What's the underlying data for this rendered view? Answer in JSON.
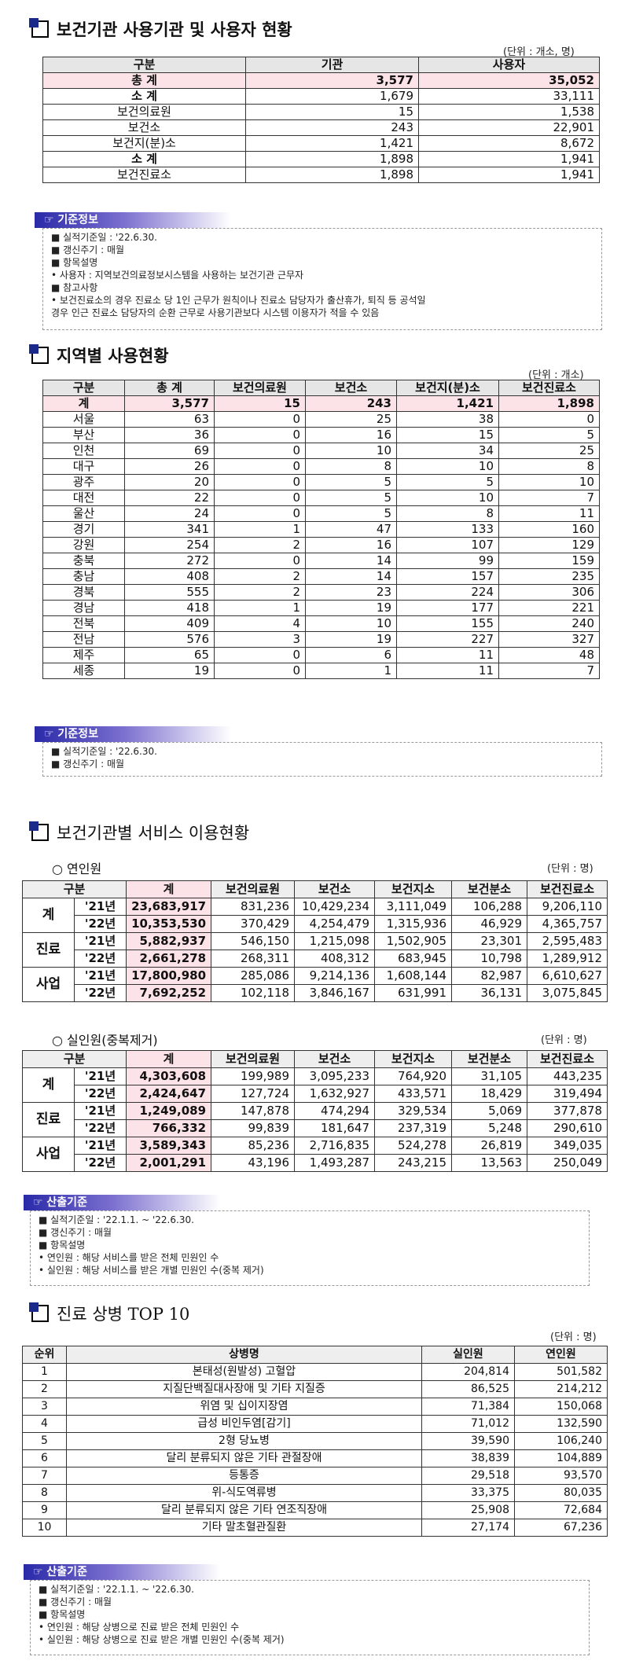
{
  "s1": {
    "title": "보건기관 사용기관 및 사용자 현황",
    "unit": "(단위 : 개소, 명)",
    "headers": [
      "구분",
      "기관",
      "사용자"
    ],
    "rows": [
      [
        "총 계",
        "3,577",
        "35,052"
      ],
      [
        "소 계",
        "1,679",
        "33,111"
      ],
      [
        "보건의료원",
        "15",
        "1,538"
      ],
      [
        "보건소",
        "243",
        "22,901"
      ],
      [
        "보건지(분)소",
        "1,421",
        "8,672"
      ],
      [
        "소 계",
        "1,898",
        "1,941"
      ],
      [
        "보건진료소",
        "1,898",
        "1,941"
      ]
    ],
    "note_head": "☞ 기준정보",
    "notes": [
      "■  실적기준일 : '22.6.30.",
      "■  갱신주기 : 매월",
      "■  항목설명",
      " • 사용자 : 지역보건의료정보시스템을 사용하는 보건기관 근무자",
      "■  참고사항",
      " • 보건진료소의 경우 진료소 당 1인 근무가 원칙이나 진료소 담당자가 출산휴가, 퇴직 등 공석일",
      "   경우 인근 진료소 담당자의 순환 근무로 사용기관보다 시스템 이용자가 적을 수 있음"
    ]
  },
  "s2": {
    "title": "지역별 사용현황",
    "unit": "(단위 : 개소)",
    "headers": [
      "구분",
      "총 계",
      "보건의료원",
      "보건소",
      "보건지(분)소",
      "보건진료소"
    ],
    "total": [
      "계",
      "3,577",
      "15",
      "243",
      "1,421",
      "1,898"
    ],
    "rows": [
      [
        "서울",
        "63",
        "0",
        "25",
        "38",
        "0"
      ],
      [
        "부산",
        "36",
        "0",
        "16",
        "15",
        "5"
      ],
      [
        "인천",
        "69",
        "0",
        "10",
        "34",
        "25"
      ],
      [
        "대구",
        "26",
        "0",
        "8",
        "10",
        "8"
      ],
      [
        "광주",
        "20",
        "0",
        "5",
        "5",
        "10"
      ],
      [
        "대전",
        "22",
        "0",
        "5",
        "10",
        "7"
      ],
      [
        "울산",
        "24",
        "0",
        "5",
        "8",
        "11"
      ],
      [
        "경기",
        "341",
        "1",
        "47",
        "133",
        "160"
      ],
      [
        "강원",
        "254",
        "2",
        "16",
        "107",
        "129"
      ],
      [
        "충북",
        "272",
        "0",
        "14",
        "99",
        "159"
      ],
      [
        "충남",
        "408",
        "2",
        "14",
        "157",
        "235"
      ],
      [
        "경북",
        "555",
        "2",
        "23",
        "224",
        "306"
      ],
      [
        "경남",
        "418",
        "1",
        "19",
        "177",
        "221"
      ],
      [
        "전북",
        "409",
        "4",
        "10",
        "155",
        "240"
      ],
      [
        "전남",
        "576",
        "3",
        "19",
        "227",
        "327"
      ],
      [
        "제주",
        "65",
        "0",
        "6",
        "11",
        "48"
      ],
      [
        "세종",
        "19",
        "0",
        "1",
        "11",
        "7"
      ]
    ],
    "note_head": "☞ 기준정보",
    "notes": [
      "■  실적기준일 : '22.6.30.",
      "■  갱신주기 : 매월"
    ]
  },
  "s3": {
    "title": "보건기관별 서비스 이용현황",
    "sub1": "○  연인원",
    "sub2": "○  실인원(중복제거)",
    "unit": "(단위 : 명)",
    "headers": [
      "구분",
      "계",
      "보건의료원",
      "보건소",
      "보건지소",
      "보건분소",
      "보건진료소"
    ],
    "t1": [
      {
        "group": "계",
        "rows": [
          [
            "'21년",
            "23,683,917",
            "831,236",
            "10,429,234",
            "3,111,049",
            "106,288",
            "9,206,110"
          ],
          [
            "'22년",
            "10,353,530",
            "370,429",
            "4,254,479",
            "1,315,936",
            "46,929",
            "4,365,757"
          ]
        ]
      },
      {
        "group": "진료",
        "rows": [
          [
            "'21년",
            "5,882,937",
            "546,150",
            "1,215,098",
            "1,502,905",
            "23,301",
            "2,595,483"
          ],
          [
            "'22년",
            "2,661,278",
            "268,311",
            "408,312",
            "683,945",
            "10,798",
            "1,289,912"
          ]
        ]
      },
      {
        "group": "사업",
        "rows": [
          [
            "'21년",
            "17,800,980",
            "285,086",
            "9,214,136",
            "1,608,144",
            "82,987",
            "6,610,627"
          ],
          [
            "'22년",
            "7,692,252",
            "102,118",
            "3,846,167",
            "631,991",
            "36,131",
            "3,075,845"
          ]
        ]
      }
    ],
    "t2": [
      {
        "group": "계",
        "rows": [
          [
            "'21년",
            "4,303,608",
            "199,989",
            "3,095,233",
            "764,920",
            "31,105",
            "443,235"
          ],
          [
            "'22년",
            "2,424,647",
            "127,724",
            "1,632,927",
            "433,571",
            "18,429",
            "319,494"
          ]
        ]
      },
      {
        "group": "진료",
        "rows": [
          [
            "'21년",
            "1,249,089",
            "147,878",
            "474,294",
            "329,534",
            "5,069",
            "377,878"
          ],
          [
            "'22년",
            "766,332",
            "99,839",
            "181,647",
            "237,319",
            "5,248",
            "290,610"
          ]
        ]
      },
      {
        "group": "사업",
        "rows": [
          [
            "'21년",
            "3,589,343",
            "85,236",
            "2,716,835",
            "524,278",
            "26,819",
            "349,035"
          ],
          [
            "'22년",
            "2,001,291",
            "43,196",
            "1,493,287",
            "243,215",
            "13,563",
            "250,049"
          ]
        ]
      }
    ],
    "note_head": "☞ 산출기준",
    "notes": [
      "■  실적기준일 : '22.1.1. ~ '22.6.30.",
      "■  갱신주기 : 매월",
      "■  항목설명",
      " •  연인원 : 해당 서비스를 받은 전체 민원인 수",
      " •  실인원 : 해당 서비스를 받은 개별 민원인 수(중복 제거)"
    ]
  },
  "s4": {
    "title": "진료 상병 TOP 10",
    "unit": "(단위 : 명)",
    "headers": [
      "순위",
      "상병명",
      "실인원",
      "연인원"
    ],
    "rows": [
      [
        "1",
        "본태성(원발성) 고혈압",
        "204,814",
        "501,582"
      ],
      [
        "2",
        "지질단백질대사장애 및 기타 지질증",
        "86,525",
        "214,212"
      ],
      [
        "3",
        "위염 및 십이지장염",
        "71,384",
        "150,068"
      ],
      [
        "4",
        "급성 비인두염[감기]",
        "71,012",
        "132,590"
      ],
      [
        "5",
        "2형 당뇨병",
        "39,590",
        "106,240"
      ],
      [
        "6",
        "달리 분류되지 않은 기타 관절장애",
        "38,839",
        "104,889"
      ],
      [
        "7",
        "등통증",
        "29,518",
        "93,570"
      ],
      [
        "8",
        "위-식도역류병",
        "33,375",
        "80,035"
      ],
      [
        "9",
        "달리 분류되지 않은 기타 연조직장애",
        "25,908",
        "72,684"
      ],
      [
        "10",
        "기타 말초혈관질환",
        "27,174",
        "67,236"
      ]
    ],
    "note_head": "☞ 산출기준",
    "notes": [
      "■  실적기준일 : '22.1.1. ~ '22.6.30.",
      "■  갱신주기 : 매월",
      "■  항목설명",
      " •  연인원 : 해당 상병으로 진료 받은 전체 민원인 수",
      " •  실인원 : 해당 상병으로 진료 받은 개별 민원인 수(중복 제거)"
    ]
  }
}
